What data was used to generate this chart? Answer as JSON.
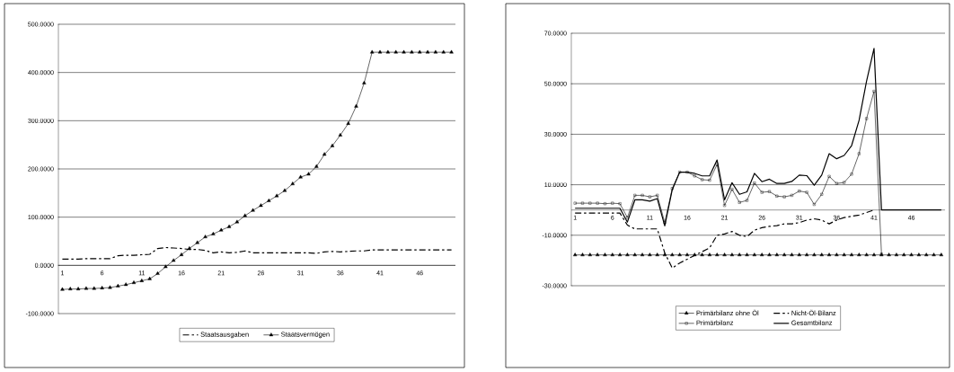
{
  "chart_data": [
    {
      "type": "line",
      "categories": [
        "1",
        null,
        null,
        null,
        null,
        "6",
        null,
        null,
        null,
        null,
        "11",
        null,
        null,
        null,
        null,
        "16",
        null,
        null,
        null,
        null,
        "21",
        null,
        null,
        null,
        null,
        "26",
        null,
        null,
        null,
        null,
        "31",
        null,
        null,
        null,
        null,
        "36",
        null,
        null,
        null,
        null,
        "41",
        null,
        null,
        null,
        null,
        "46",
        null,
        null,
        null,
        null
      ],
      "ylim": [
        -100,
        500
      ],
      "yticks": [
        {
          "value": -100,
          "label": "-100.0000"
        },
        {
          "value": 0,
          "label": "0.0000"
        },
        {
          "value": 100,
          "label": "100.0000"
        },
        {
          "value": 200,
          "label": "200.0000"
        },
        {
          "value": 300,
          "label": "300.0000"
        },
        {
          "value": 400,
          "label": "400.0000"
        },
        {
          "value": 500,
          "label": "500.0000"
        }
      ],
      "grid": "y",
      "legend": "bottom",
      "series": [
        {
          "name": "Staatsausgaben",
          "color": "#000000",
          "line_style": "dashed",
          "marker": "none",
          "values": [
            13,
            13,
            13,
            14,
            14,
            14,
            14,
            20,
            21,
            21,
            22,
            23,
            35,
            37,
            36,
            35,
            33,
            33,
            31,
            26,
            28,
            26,
            27,
            30,
            26,
            26,
            26,
            26,
            26,
            26,
            26,
            26,
            25,
            28,
            29,
            28,
            29,
            30,
            30,
            32,
            32,
            32,
            32,
            32,
            32,
            32,
            32,
            32,
            32,
            32
          ]
        },
        {
          "name": "Staatsvermögen",
          "color": "#000000",
          "line_style": "solid",
          "marker": "triangle",
          "values": [
            -50,
            -49,
            -49,
            -48,
            -48,
            -47,
            -46,
            -43,
            -40,
            -36,
            -32,
            -28,
            -17,
            -3,
            10,
            22,
            35,
            47,
            59,
            65,
            73,
            80,
            90,
            103,
            114,
            124,
            134,
            144,
            155,
            169,
            183,
            189,
            205,
            230,
            248,
            270,
            294,
            330,
            378,
            442,
            442,
            442,
            442,
            442,
            442,
            442,
            442,
            442,
            442,
            442
          ]
        }
      ]
    },
    {
      "type": "line",
      "categories": [
        "1",
        null,
        null,
        null,
        null,
        "6",
        null,
        null,
        null,
        null,
        "11",
        null,
        null,
        null,
        null,
        "16",
        null,
        null,
        null,
        null,
        "21",
        null,
        null,
        null,
        null,
        "26",
        null,
        null,
        null,
        null,
        "31",
        null,
        null,
        null,
        null,
        "36",
        null,
        null,
        null,
        null,
        "41",
        null,
        null,
        null,
        null,
        "46",
        null,
        null,
        null,
        null
      ],
      "ylim": [
        -30,
        70
      ],
      "yticks": [
        {
          "value": -30,
          "label": "-30.0000"
        },
        {
          "value": -10,
          "label": "-10.0000"
        },
        {
          "value": 10,
          "label": "10.0000"
        },
        {
          "value": 30,
          "label": "30.0000"
        },
        {
          "value": 50,
          "label": "50.0000"
        },
        {
          "value": 70,
          "label": "70.0000"
        }
      ],
      "grid": "y",
      "legend": "bottom",
      "series": [
        {
          "name": "Primärbilanz ohne Öl",
          "color": "#000000",
          "line_style": "solid",
          "marker": "triangle",
          "values": [
            -17.8,
            -17.8,
            -17.8,
            -17.8,
            -17.8,
            -17.8,
            -17.8,
            -17.8,
            -17.8,
            -17.8,
            -17.8,
            -17.8,
            -17.8,
            -17.8,
            -17.8,
            -17.8,
            -17.8,
            -17.8,
            -17.8,
            -17.8,
            -17.8,
            -17.8,
            -17.8,
            -17.8,
            -17.8,
            -17.8,
            -17.8,
            -17.8,
            -17.8,
            -17.8,
            -17.8,
            -17.8,
            -17.8,
            -17.8,
            -17.8,
            -17.8,
            -17.8,
            -17.8,
            -17.8,
            -17.8,
            -17.8,
            -17.8,
            -17.8,
            -17.8,
            -17.8,
            -17.8,
            -17.8,
            -17.8,
            -17.8,
            -17.8
          ]
        },
        {
          "name": "Nicht-Öl-Bilanz",
          "color": "#000000",
          "line_style": "dashed",
          "marker": "none",
          "values": [
            -1.2,
            -1.2,
            -1.2,
            -1.2,
            -1.2,
            -1.2,
            -1.2,
            -6,
            -7.5,
            -7.5,
            -7.5,
            -7.5,
            -17,
            -23,
            -21,
            -19.5,
            -18,
            -16.5,
            -15,
            -10,
            -9.5,
            -8.5,
            -10,
            -10.5,
            -8,
            -7,
            -6.5,
            -6.2,
            -5.5,
            -5.5,
            -5,
            -4,
            -3.5,
            -4,
            -5.5,
            -4,
            -3,
            -2.5,
            -2,
            -1,
            0,
            null,
            null,
            null,
            null,
            null,
            null,
            null,
            null,
            null
          ]
        },
        {
          "name": "Primärbilanz",
          "color": "#000000",
          "line_style": "solid",
          "marker": "square",
          "values": [
            2.7,
            2.7,
            2.7,
            2.7,
            2.5,
            2.7,
            2.5,
            -3,
            5.8,
            5.8,
            5.2,
            5.8,
            -5,
            8.5,
            15,
            15,
            13.5,
            12,
            11.8,
            18,
            1.8,
            8.2,
            3,
            3.8,
            10.7,
            7,
            7.3,
            5.5,
            5.2,
            5.8,
            7.5,
            7,
            2.2,
            6.2,
            13.3,
            10.5,
            10.9,
            14.2,
            22.3,
            36.2,
            47,
            -17.5,
            null,
            null,
            null,
            null,
            null,
            null,
            null,
            null
          ]
        },
        {
          "name": "Gesamtbilanz",
          "color": "#000000",
          "line_style": "solid",
          "marker": "none",
          "values": [
            0.7,
            0.7,
            0.7,
            0.7,
            0.7,
            0.7,
            0.7,
            -4.8,
            4,
            4,
            3.5,
            4.5,
            -6.3,
            8,
            15,
            15,
            14.5,
            13.5,
            13.5,
            19.8,
            4,
            10.8,
            6.2,
            7.2,
            14.5,
            11.2,
            12.2,
            10.5,
            10.5,
            11.3,
            13.8,
            13.6,
            9.8,
            13.8,
            22.3,
            20.3,
            21.6,
            25.5,
            35.5,
            51,
            64,
            0,
            0,
            0,
            0,
            0,
            0,
            0,
            0,
            0
          ]
        }
      ]
    }
  ]
}
